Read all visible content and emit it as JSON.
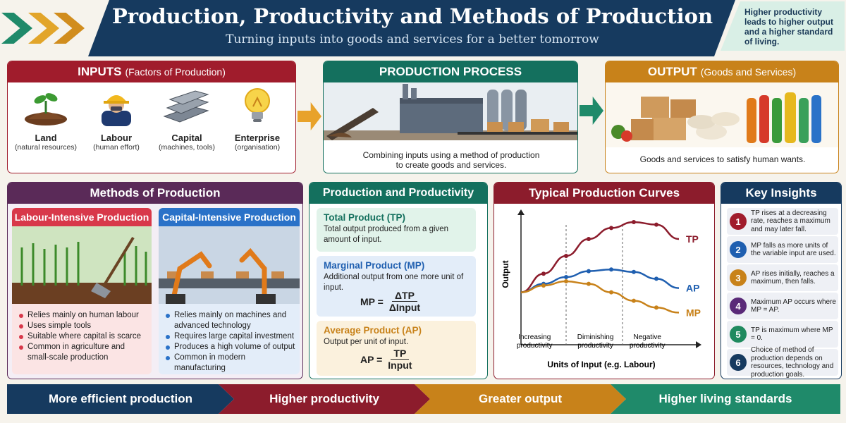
{
  "header": {
    "title": "Production, Productivity and Methods of Production",
    "subtitle": "Turning inputs into goods and services for a better tomorrow",
    "note": "Higher productivity leads to higher output and a higher standard of living."
  },
  "inputs": {
    "title": "INPUTS",
    "title_sub": "(Factors of Production)",
    "items": [
      {
        "name": "Land",
        "desc": "(natural resources)",
        "icon": "soil-sprout-icon"
      },
      {
        "name": "Labour",
        "desc": "(human effort)",
        "icon": "worker-icon"
      },
      {
        "name": "Capital",
        "desc": "(machines, tools)",
        "icon": "steel-beams-icon"
      },
      {
        "name": "Enterprise",
        "desc": "(organisation)",
        "icon": "lightbulb-icon"
      }
    ]
  },
  "process": {
    "title": "PRODUCTION PROCESS",
    "caption": "Combining inputs using a method of production\nto create goods and services."
  },
  "output": {
    "title": "OUTPUT",
    "title_sub": "(Goods and Services)",
    "caption": "Goods and services to satisfy human wants."
  },
  "methods": {
    "title": "Methods of Production",
    "labour": {
      "title": "Labour-Intensive Production",
      "bullets": [
        "Relies mainly on human labour",
        "Uses simple tools",
        "Suitable where capital is scarce",
        "Common in agriculture and small-scale production"
      ]
    },
    "capital": {
      "title": "Capital-Intensive Production",
      "bullets": [
        "Relies mainly on machines and advanced technology",
        "Requires large capital investment",
        "Produces a high volume of output",
        "Common in modern manufacturing"
      ]
    }
  },
  "productivity": {
    "title": "Production and Productivity",
    "tp": {
      "title": "Total Product (TP)",
      "desc": "Total output produced from a given amount of input."
    },
    "mp": {
      "title": "Marginal Product (MP)",
      "desc": "Additional output from one more unit of input.",
      "lhs": "MP =",
      "num": "ΔTP",
      "den": "ΔInput"
    },
    "ap": {
      "title": "Average Product (AP)",
      "desc": "Output per unit of input.",
      "lhs": "AP =",
      "num": "TP",
      "den": "Input"
    }
  },
  "curves": {
    "title": "Typical Production Curves",
    "ylabel": "Output",
    "xlabel": "Units of Input (e.g. Labour)",
    "stages": [
      "Increasing\nproductivity",
      "Diminishing\nproductivity",
      "Negative\nproductivity"
    ],
    "series": [
      {
        "name": "TP",
        "color": "#8c1c2c",
        "points": [
          [
            0,
            0.12
          ],
          [
            1,
            0.34
          ],
          [
            2,
            0.55
          ],
          [
            3,
            0.75
          ],
          [
            4,
            0.88
          ],
          [
            5,
            0.95
          ],
          [
            6,
            0.92
          ],
          [
            7,
            0.75
          ]
        ]
      },
      {
        "name": "AP",
        "color": "#1f5fb0",
        "points": [
          [
            0,
            0.12
          ],
          [
            1,
            0.22
          ],
          [
            2,
            0.3
          ],
          [
            3,
            0.37
          ],
          [
            4,
            0.39
          ],
          [
            5,
            0.36
          ],
          [
            6,
            0.28
          ],
          [
            7,
            0.17
          ]
        ]
      },
      {
        "name": "MP",
        "color": "#c8821a",
        "points": [
          [
            0,
            0.12
          ],
          [
            1,
            0.2
          ],
          [
            2,
            0.25
          ],
          [
            3,
            0.22
          ],
          [
            4,
            0.12
          ],
          [
            5,
            0.02
          ],
          [
            6,
            -0.06
          ],
          [
            7,
            -0.12
          ]
        ]
      }
    ]
  },
  "insights": {
    "title": "Key Insights",
    "items": [
      {
        "n": "1",
        "color": "#a01c2c",
        "text": "TP rises at a decreasing rate, reaches a maximum and may later fall."
      },
      {
        "n": "2",
        "color": "#1f5fb0",
        "text": "MP falls as more units of the variable input are used."
      },
      {
        "n": "3",
        "color": "#c8821a",
        "text": "AP rises initially, reaches a maximum, then falls."
      },
      {
        "n": "4",
        "color": "#5a2a78",
        "text": "Maximum AP occurs where MP = AP."
      },
      {
        "n": "5",
        "color": "#1f8a5f",
        "text": "TP is maximum where MP = 0."
      },
      {
        "n": "6",
        "color": "#163a5f",
        "text": "Choice of method of production depends on resources, technology and production goals."
      }
    ]
  },
  "bottom": [
    "More efficient production",
    "Higher productivity",
    "Greater output",
    "Higher living standards"
  ]
}
